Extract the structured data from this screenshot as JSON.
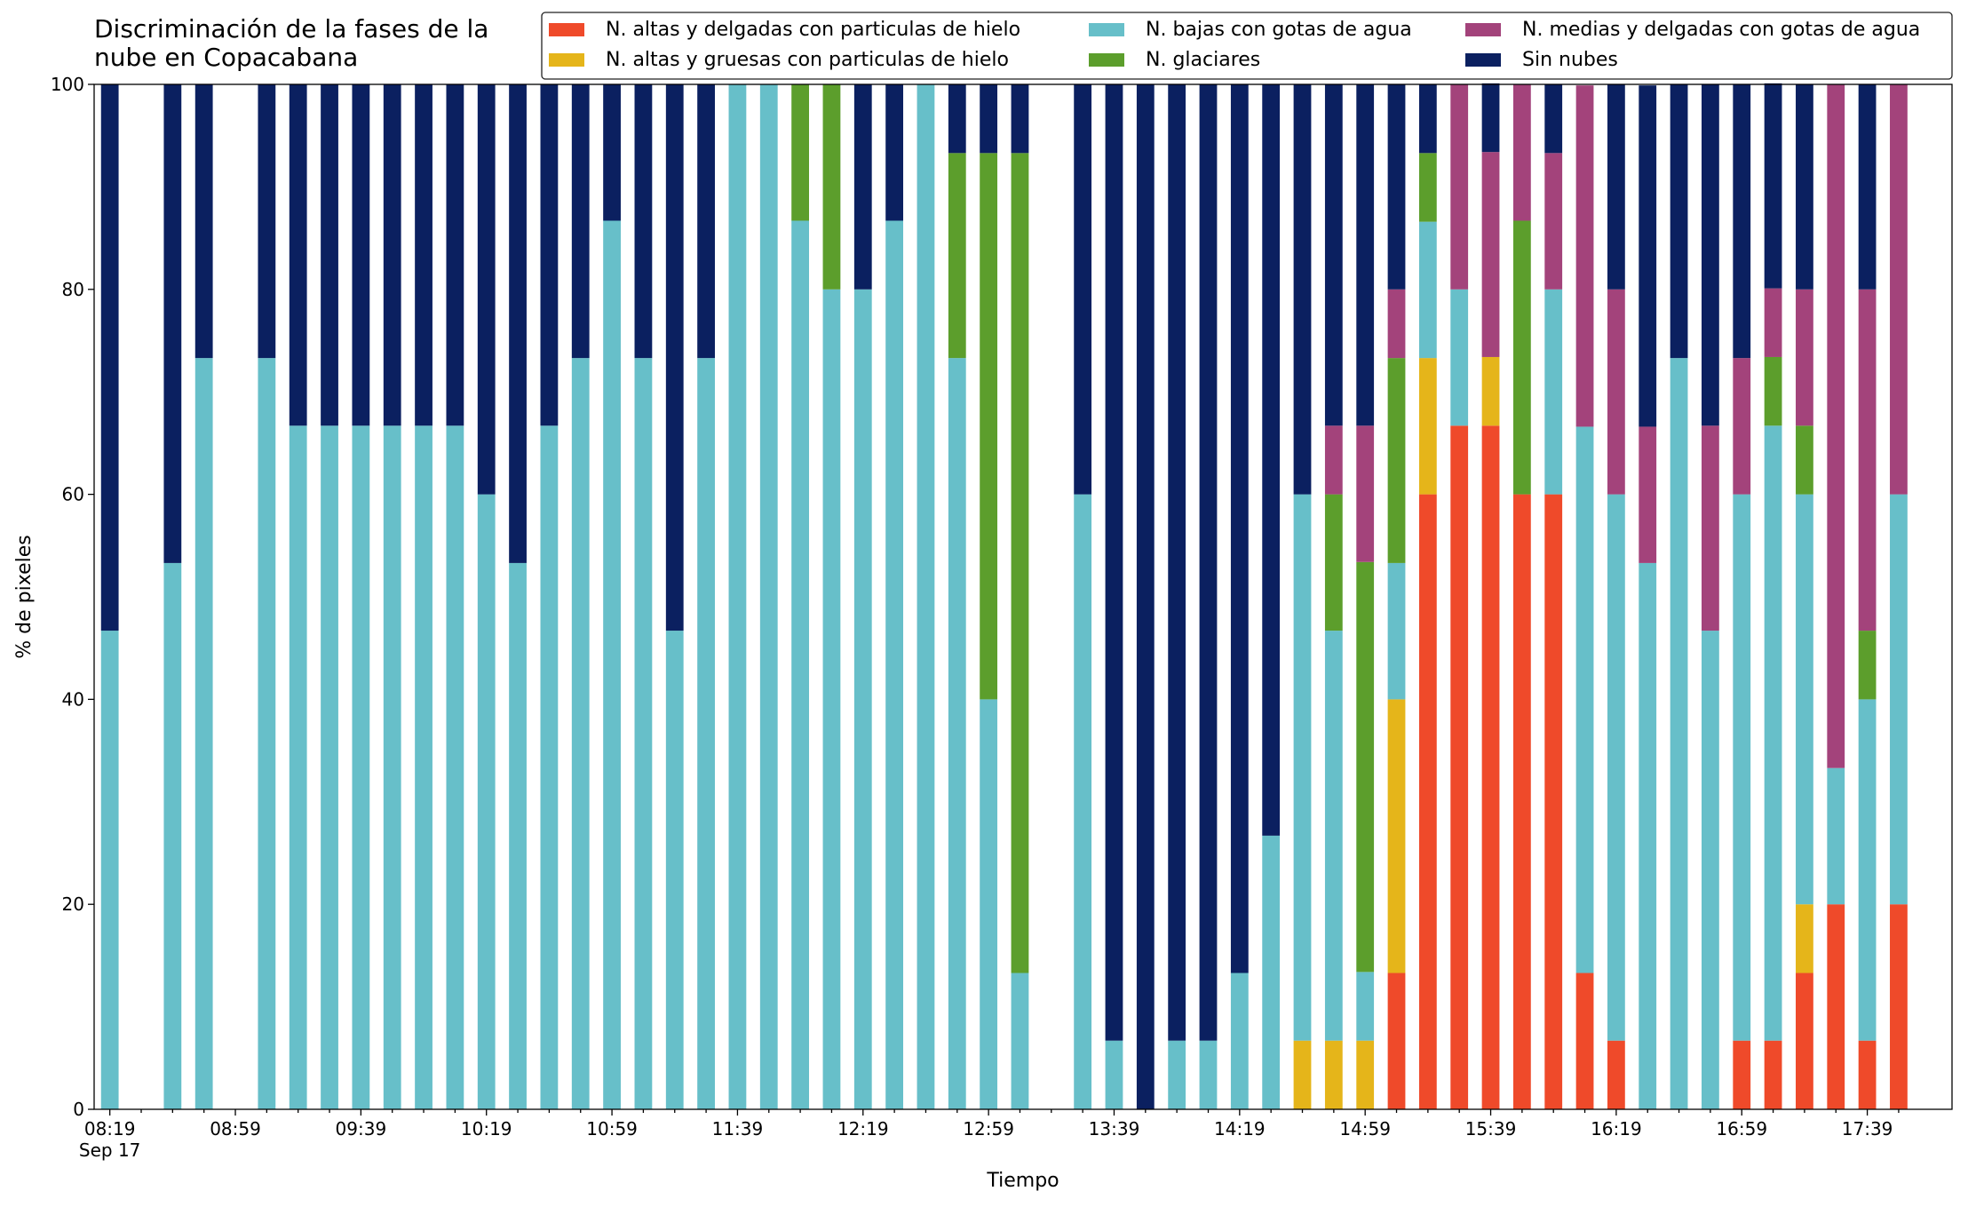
{
  "chart_data": {
    "type": "stacked_bar",
    "title": "Discriminación de la fases de la\nnube en Copacabana",
    "xlabel": "Tiempo",
    "ylabel": "% de pixeles",
    "date_label": "Sep 17",
    "categories": [
      "08:19",
      null,
      null,
      null,
      "08:59",
      null,
      null,
      null,
      "09:39",
      null,
      null,
      null,
      "10:19",
      null,
      null,
      null,
      "10:59",
      null,
      null,
      null,
      "11:39",
      null,
      null,
      null,
      "12:19",
      null,
      null,
      null,
      "12:59",
      null,
      null,
      null,
      "13:39",
      null,
      null,
      null,
      "14:19",
      null,
      null,
      null,
      "14:59",
      null,
      null,
      null,
      "15:39",
      null,
      null,
      null,
      "16:19",
      null,
      null,
      null,
      "16:59",
      null,
      null,
      null,
      "17:39",
      null
    ],
    "ylim": [
      0,
      100
    ],
    "yticks": [
      0,
      20,
      40,
      60,
      80,
      100
    ],
    "legend": "top-right",
    "series": [
      {
        "name": "N. altas y delgadas con particulas de hielo",
        "color": "#ef4a2a",
        "values": [
          null,
          null,
          null,
          null,
          null,
          null,
          null,
          null,
          null,
          null,
          null,
          null,
          null,
          null,
          null,
          null,
          null,
          null,
          null,
          null,
          null,
          null,
          null,
          null,
          null,
          null,
          null,
          null,
          null,
          null,
          null,
          null,
          null,
          null,
          null,
          null,
          null,
          null,
          null,
          null,
          null,
          13.3,
          60,
          66.7,
          66.7,
          60,
          60,
          13.3,
          6.7,
          null,
          null,
          null,
          6.7,
          6.7,
          13.3,
          20,
          6.7,
          20
        ]
      },
      {
        "name": "N. altas y gruesas con particulas de hielo",
        "color": "#e5b51a",
        "values": [
          null,
          null,
          null,
          null,
          null,
          null,
          null,
          null,
          null,
          null,
          null,
          null,
          null,
          null,
          null,
          null,
          null,
          null,
          null,
          null,
          null,
          null,
          null,
          null,
          null,
          null,
          null,
          null,
          null,
          null,
          null,
          null,
          null,
          null,
          null,
          null,
          null,
          null,
          6.7,
          6.7,
          6.7,
          26.7,
          13.3,
          null,
          6.7,
          null,
          null,
          null,
          null,
          null,
          null,
          null,
          null,
          null,
          6.7,
          null,
          null,
          null
        ]
      },
      {
        "name": "N. bajas con gotas de agua",
        "color": "#67bfc9",
        "values": [
          46.7,
          null,
          53.3,
          73.3,
          null,
          73.3,
          66.7,
          66.7,
          66.7,
          66.7,
          66.7,
          66.7,
          60,
          53.3,
          66.7,
          73.3,
          86.7,
          73.3,
          46.7,
          73.3,
          100,
          100,
          86.7,
          80,
          80,
          86.7,
          100,
          73.3,
          40,
          13.3,
          null,
          60,
          6.7,
          null,
          6.7,
          6.7,
          13.3,
          26.7,
          53.3,
          40,
          6.7,
          13.3,
          13.3,
          13.3,
          null,
          null,
          20,
          53.3,
          53.3,
          53.3,
          73.3,
          46.7,
          53.3,
          60,
          40,
          13.3,
          33.3,
          40
        ]
      },
      {
        "name": "N. glaciares",
        "color": "#5c9e2c",
        "values": [
          null,
          null,
          null,
          null,
          null,
          null,
          null,
          null,
          null,
          null,
          null,
          null,
          null,
          null,
          null,
          null,
          null,
          null,
          null,
          null,
          null,
          null,
          13.3,
          20,
          null,
          null,
          null,
          20,
          53.3,
          80,
          null,
          null,
          null,
          null,
          null,
          null,
          null,
          null,
          null,
          13.3,
          40,
          20,
          6.7,
          null,
          null,
          26.7,
          null,
          null,
          null,
          null,
          null,
          null,
          null,
          6.7,
          6.7,
          null,
          6.7,
          null
        ]
      },
      {
        "name": "N. medias y delgadas con gotas de agua",
        "color": "#a3437b",
        "values": [
          null,
          null,
          null,
          null,
          null,
          null,
          null,
          null,
          null,
          null,
          null,
          null,
          null,
          null,
          null,
          null,
          null,
          null,
          null,
          null,
          null,
          null,
          null,
          null,
          null,
          null,
          null,
          null,
          null,
          null,
          null,
          null,
          null,
          null,
          null,
          null,
          null,
          null,
          null,
          6.7,
          13.3,
          6.7,
          null,
          20,
          20,
          13.3,
          13.3,
          33.3,
          20,
          13.3,
          null,
          20,
          13.3,
          6.7,
          13.3,
          66.7,
          33.3,
          40
        ]
      },
      {
        "name": "Sin nubes",
        "color": "#0b2060",
        "values": [
          53.3,
          null,
          46.7,
          26.7,
          null,
          26.7,
          33.3,
          33.3,
          33.3,
          33.3,
          33.3,
          33.3,
          40,
          46.7,
          33.3,
          26.7,
          13.3,
          26.7,
          53.3,
          26.7,
          null,
          null,
          null,
          null,
          20,
          13.3,
          null,
          6.7,
          6.7,
          6.7,
          null,
          40,
          93.3,
          100,
          93.3,
          93.3,
          86.7,
          73.3,
          40,
          33.3,
          33.3,
          20,
          6.7,
          null,
          6.7,
          null,
          6.7,
          null,
          20,
          33.3,
          26.7,
          33.3,
          26.7,
          20,
          20,
          null,
          20,
          null
        ]
      }
    ]
  }
}
